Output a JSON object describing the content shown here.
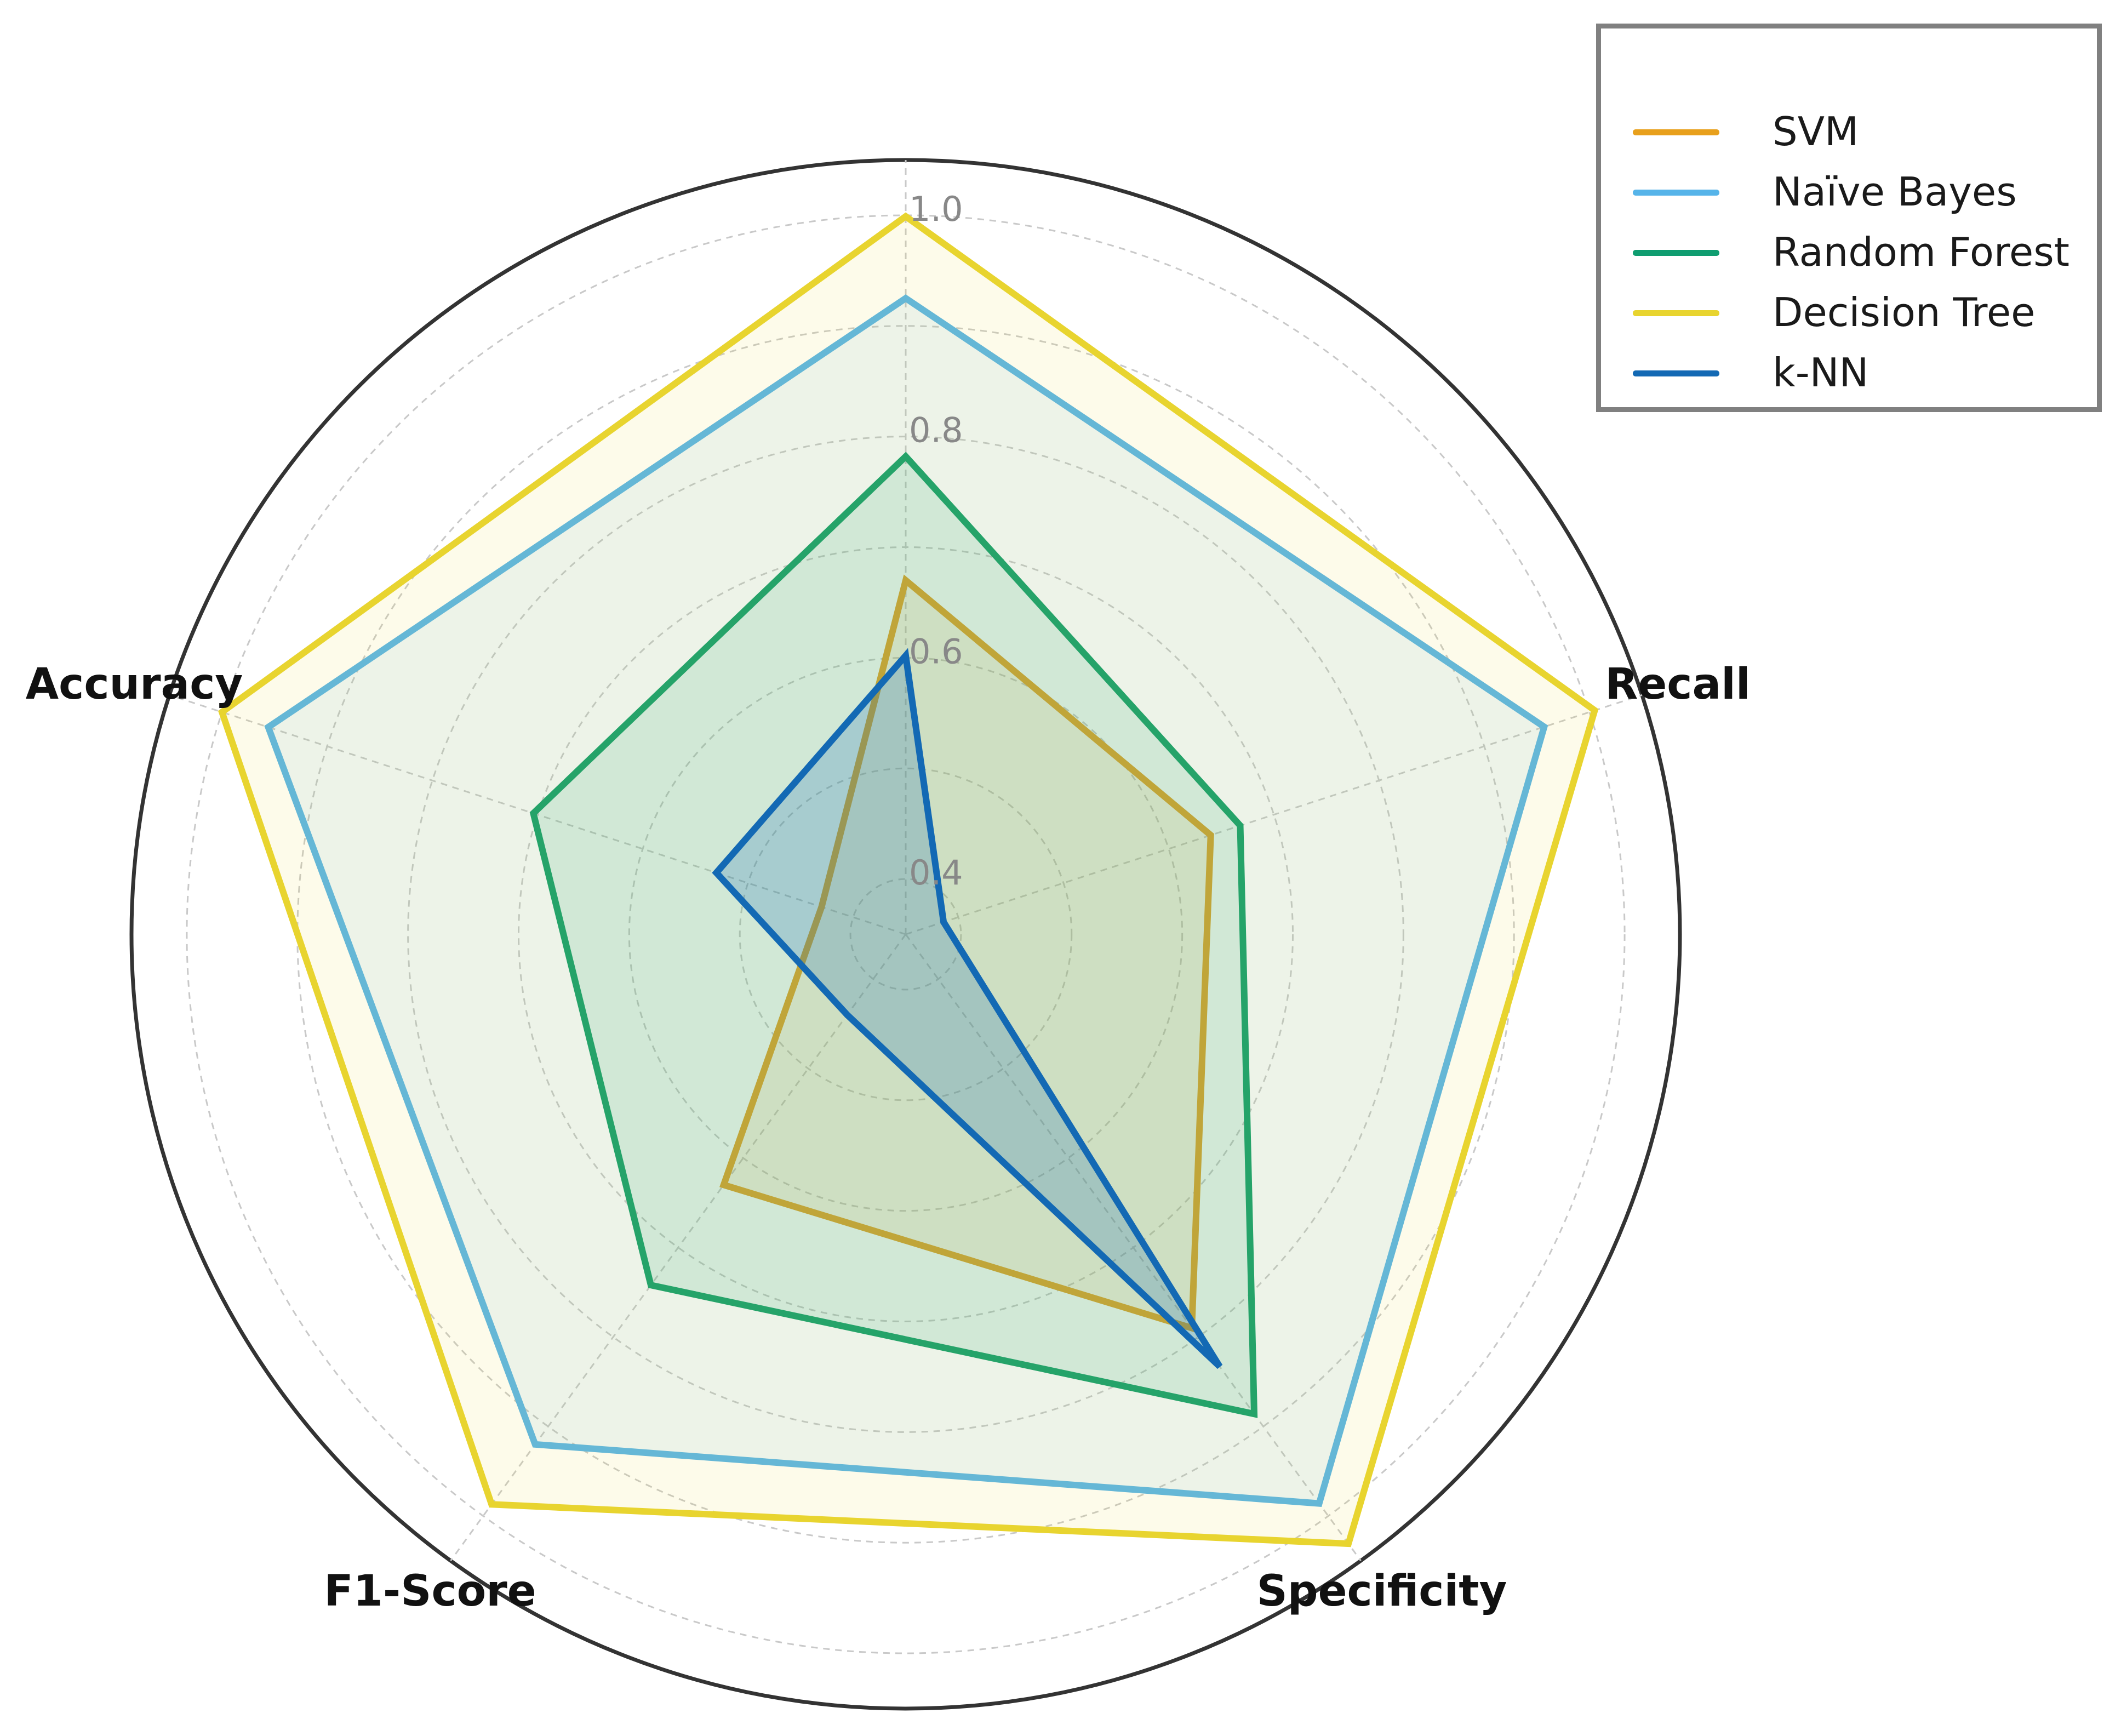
{
  "chart_data": {
    "type": "radar",
    "axes": [
      "Recall",
      "Specificity",
      "F1-Score",
      "Accuracy"
    ],
    "axis_label_at_top": "",
    "radial_ticks": [
      "0.4",
      "0.6",
      "0.8",
      "1.0"
    ],
    "rlim": [
      0.35,
      1.05
    ],
    "grid": true,
    "legend_position": "top-right",
    "series": [
      {
        "name": "SVM",
        "color": "#E8A01C",
        "values": [
          0.67,
          0.64,
          0.79,
          0.63,
          0.43
        ]
      },
      {
        "name": "Naïve Bayes",
        "color": "#56B4E9",
        "values": [
          0.925,
          0.957,
          0.986,
          0.92,
          0.956
        ]
      },
      {
        "name": "Random Forest",
        "color": "#0F9D70",
        "values": [
          0.782,
          0.668,
          0.886,
          0.742,
          0.704
        ]
      },
      {
        "name": "Decision Tree",
        "color": "#E8D42F",
        "values": [
          0.999,
          1.005,
          1.031,
          0.987,
          1.0
        ]
      },
      {
        "name": "k-NN",
        "color": "#1369B4",
        "values": [
          0.602,
          0.386,
          0.833,
          0.44,
          0.53
        ]
      }
    ]
  }
}
